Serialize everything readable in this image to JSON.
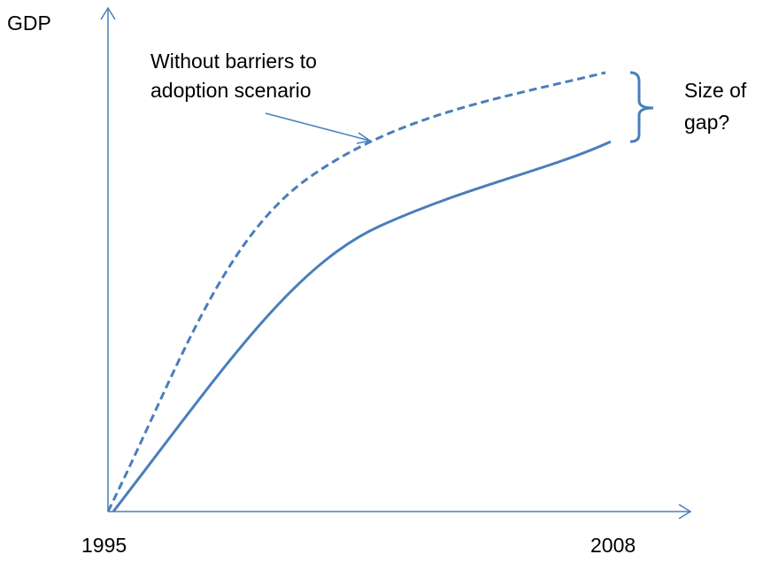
{
  "y_axis_label": "GDP",
  "x_axis_labels": {
    "start": "1995",
    "end": "2008"
  },
  "annotations": {
    "scenario": [
      "Without barriers to",
      "adoption scenario"
    ],
    "gap": [
      "Size of",
      "gap?"
    ]
  }
}
